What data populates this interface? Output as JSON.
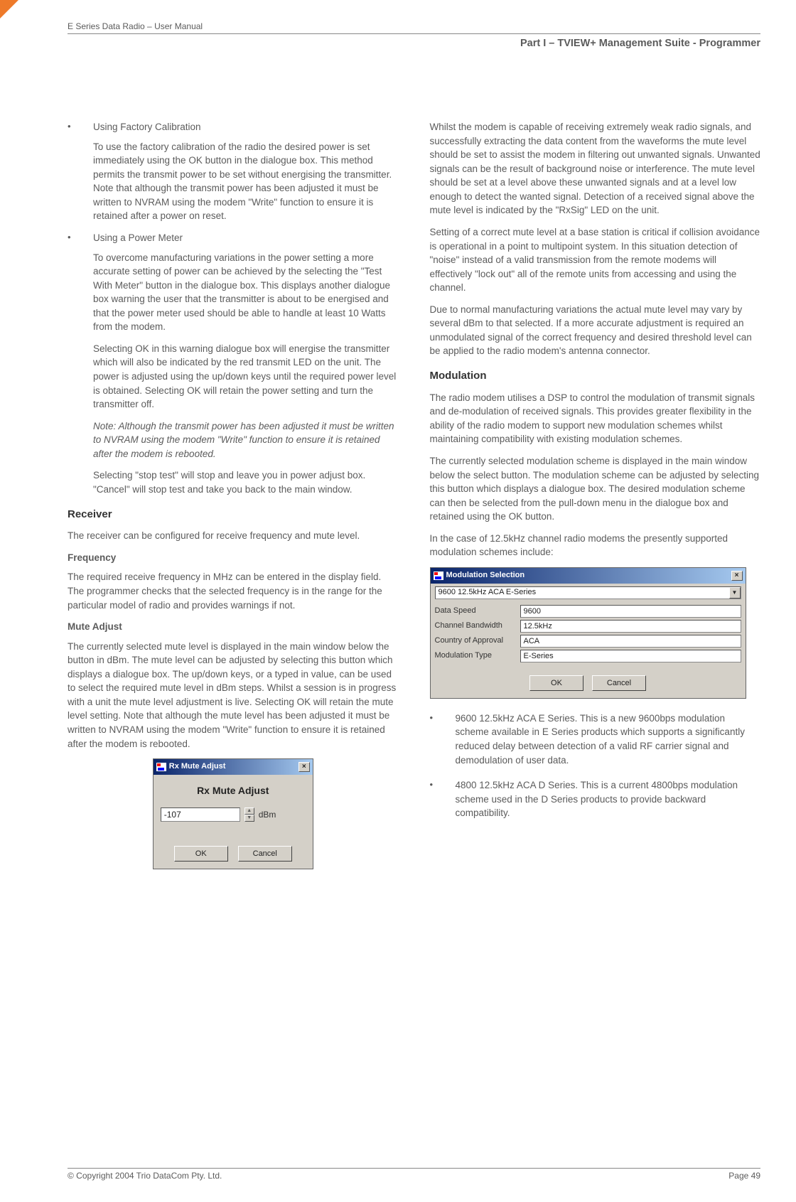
{
  "header": {
    "doc_title": "E Series Data Radio – User Manual",
    "part_label": "Part I – TVIEW+ Management Suite - Programmer"
  },
  "left": {
    "bullet1_title": "Using Factory Calibration",
    "bullet1_body": "To use the factory calibration of the radio the desired power is set immediately using the OK button in the dialogue box. This method permits the transmit power to be set without energising the transmitter. Note that although the transmit power has been adjusted it must be written to NVRAM using the modem \"Write\" function to ensure it is retained after a power on reset.",
    "bullet2_title": "Using a Power Meter",
    "bullet2_body1": "To overcome manufacturing variations in the power setting a more accurate setting of power can be achieved by the selecting the \"Test With Meter\" button in the dialogue box. This displays another dialogue box warning the user that the transmitter is about to be energised and that the power meter used should be able to handle at least 10 Watts from the modem.",
    "bullet2_body2": "Selecting OK in this warning dialogue box will energise the transmitter which will also be indicated by the red transmit LED on the unit. The power is adjusted using the up/down keys until the required power level is obtained. Selecting OK will retain the power setting and turn the transmitter off.",
    "bullet2_note": "Note: Although the transmit power has been adjusted it must be written to NVRAM using the modem \"Write\" function to ensure it is retained after the modem is rebooted.",
    "bullet2_body3": "Selecting \"stop test\" will stop and leave you in power adjust box. \"Cancel\" will stop test and take you back to the main window.",
    "receiver_head": "Receiver",
    "receiver_intro": "The receiver can be configured for receive frequency and mute level.",
    "freq_head": "Frequency",
    "freq_body": "The required receive frequency in MHz can be entered in the display field.  The programmer checks that the selected frequency is in the range for the particular model of radio and provides warnings if not.",
    "mute_head": "Mute Adjust",
    "mute_body": "The currently selected mute level is displayed in the main window below the button in dBm. The mute level can be adjusted by selecting this button which displays a dialogue box. The up/down keys, or a typed in value, can be used to select the required mute level in dBm steps. Whilst a session is in progress with a unit the mute level adjustment is live. Selecting OK will retain the mute level setting. Note that although the mute level has been adjusted it must be written to NVRAM using the modem \"Write\" function to ensure it is retained after the modem is rebooted.",
    "rx_dialog": {
      "title": "Rx Mute Adjust",
      "heading": "Rx Mute Adjust",
      "value": "-107",
      "unit": "dBm",
      "ok": "OK",
      "cancel": "Cancel"
    }
  },
  "right": {
    "para1": "Whilst the modem is capable of receiving extremely weak radio signals, and successfully extracting the data content from the waveforms the mute level should be set to assist the modem in filtering out unwanted signals. Unwanted signals can be the result of background noise or interference. The mute level should be set at a level above these unwanted signals and at a level low enough to detect the wanted signal. Detection of a received signal above the mute level is indicated by the \"RxSig\" LED on the unit.",
    "para2": "Setting of a correct mute level at a base station is critical if collision avoidance is operational in a point to multipoint system. In this situation detection of \"noise\" instead of a valid transmission from the remote modems will effectively \"lock out\" all of the remote units from accessing and using the channel.",
    "para3": "Due to normal manufacturing variations the actual mute level may vary by several dBm to that selected. If a more accurate adjustment is required an unmodulated signal of the correct frequency and desired threshold level can be applied to the radio modem's antenna connector.",
    "mod_head": "Modulation",
    "mod_p1": "The radio modem utilises a DSP to control the modulation of transmit signals and de-modulation of received signals. This provides greater flexibility in the ability of the radio modem to support new modulation schemes whilst maintaining compatibility with existing modulation schemes.",
    "mod_p2": "The currently selected modulation scheme is displayed in the main window below the select button. The modulation scheme can be adjusted by selecting this button which displays a dialogue box. The desired modulation scheme can then be selected from the pull-down menu in the dialogue box and retained using the OK button.",
    "mod_p3": "In the case of 12.5kHz channel radio modems the presently supported modulation schemes include:",
    "mod_dialog": {
      "title": "Modulation Selection",
      "combo": "9600 12.5kHz ACA E-Series",
      "rows": [
        {
          "label": "Data Speed",
          "value": "9600"
        },
        {
          "label": "Channel Bandwidth",
          "value": "12.5kHz"
        },
        {
          "label": "Country of Approval",
          "value": "ACA"
        },
        {
          "label": "Modulation Type",
          "value": "E-Series"
        }
      ],
      "ok": "OK",
      "cancel": "Cancel"
    },
    "schemes": [
      "9600 12.5kHz ACA E Series. This is a new 9600bps modulation scheme available in E Series products which supports a significantly reduced delay between detection of a valid RF carrier signal and demodulation of user data.",
      "4800 12.5kHz ACA D Series. This is a current 4800bps modulation scheme used in the D Series products to provide backward compatibility."
    ]
  },
  "footer": {
    "copyright": "© Copyright 2004 Trio DataCom Pty. Ltd.",
    "page": "Page 49"
  }
}
